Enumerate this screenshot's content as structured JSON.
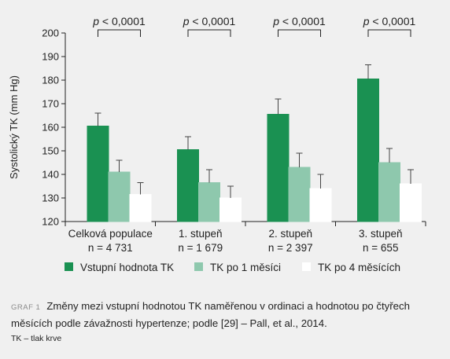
{
  "chart_data": {
    "type": "bar",
    "ylabel": "Systolický TK (mm Hg)",
    "ylim": [
      120,
      200
    ],
    "yticks": [
      120,
      130,
      140,
      150,
      160,
      170,
      180,
      190,
      200
    ],
    "grid": false,
    "legend_position": "bottom",
    "categories": [
      {
        "name": "Celková populace",
        "n": "n = 4 731"
      },
      {
        "name": "1. stupeň",
        "n": "n = 1 679"
      },
      {
        "name": "2. stupeň",
        "n": "n = 2 397"
      },
      {
        "name": "3. stupeň",
        "n": "n = 655"
      }
    ],
    "series": [
      {
        "name": "Vstupní hodnota TK",
        "color": "#1a9152",
        "values": [
          160.5,
          150.5,
          165.5,
          180.5
        ],
        "errors": [
          5.5,
          5.5,
          6.5,
          6.0
        ]
      },
      {
        "name": "TK po 1 měsíci",
        "color": "#8ec8ad",
        "values": [
          141,
          136.5,
          143,
          145
        ],
        "errors": [
          5.0,
          5.5,
          6.0,
          6.0
        ]
      },
      {
        "name": "TK po 4 měsících",
        "color": "#ffffff",
        "values": [
          131.5,
          130,
          134,
          136
        ],
        "errors": [
          5.0,
          5.0,
          6.0,
          6.0
        ]
      }
    ],
    "significance": [
      "p < 0,0001",
      "p < 0,0001",
      "p < 0,0001",
      "p < 0,0001"
    ]
  },
  "caption": {
    "label": "GRAF 1",
    "text": "Změny mezi vstupní hodnotou TK naměřenou v ordinaci a hodnotou po čtyřech měsících podle závažnosti hypertenze; podle [29] – Pall, et al., 2014.",
    "abbreviation": "TK – tlak krve"
  }
}
